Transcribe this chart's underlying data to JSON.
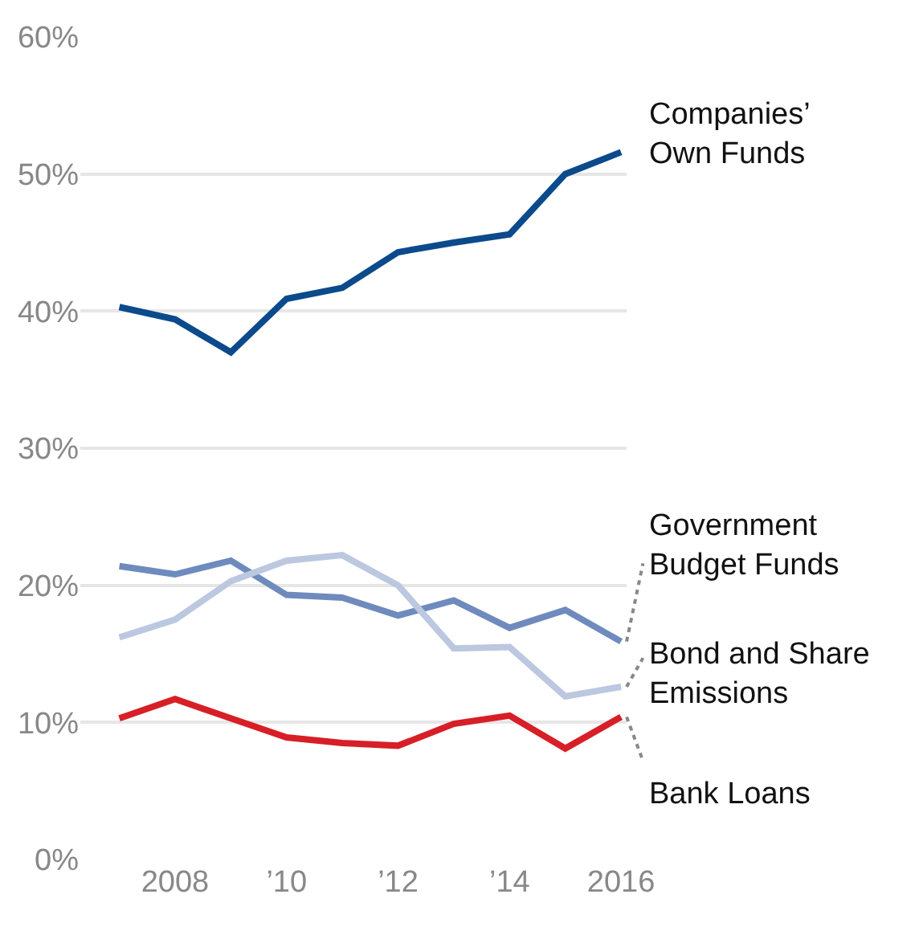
{
  "chart_data": {
    "type": "line",
    "x": [
      2007,
      2008,
      2009,
      2010,
      2011,
      2012,
      2013,
      2014,
      2015,
      2016
    ],
    "series": [
      {
        "name": "Companies’\nOwn Funds",
        "color": "#0b4a8b",
        "values": [
          40.3,
          39.4,
          37.0,
          40.9,
          41.7,
          44.3,
          45.0,
          45.6,
          50.0,
          51.6
        ]
      },
      {
        "name": "Government\nBudget Funds",
        "color": "#6f8bbd",
        "values": [
          21.4,
          20.8,
          21.8,
          19.3,
          19.1,
          17.8,
          18.9,
          16.9,
          18.2,
          15.9
        ]
      },
      {
        "name": "Bond and Share\nEmissions",
        "color": "#bcc7e0",
        "values": [
          16.2,
          17.5,
          20.3,
          21.8,
          22.2,
          20.0,
          15.4,
          15.5,
          11.9,
          12.6
        ]
      },
      {
        "name": "Bank Loans",
        "color": "#d71f27",
        "values": [
          10.3,
          11.7,
          10.3,
          8.9,
          8.5,
          8.3,
          9.9,
          10.5,
          8.1,
          10.4
        ]
      }
    ],
    "xlim": [
      2006.3,
      2016.1
    ],
    "xticks": [
      {
        "value": 2008,
        "label": "2008"
      },
      {
        "value": 2010,
        "label": "’10"
      },
      {
        "value": 2012,
        "label": "’12"
      },
      {
        "value": 2014,
        "label": "’14"
      },
      {
        "value": 2016,
        "label": "2016"
      }
    ],
    "ylim": [
      0,
      60
    ],
    "yticks": [
      {
        "value": 0,
        "label": "0%"
      },
      {
        "value": 10,
        "label": "10%"
      },
      {
        "value": 20,
        "label": "20%"
      },
      {
        "value": 30,
        "label": "30%"
      },
      {
        "value": 40,
        "label": "40%"
      },
      {
        "value": 50,
        "label": "50%"
      },
      {
        "value": 60,
        "label": "60%"
      }
    ],
    "grid": "y",
    "marker": "none",
    "line_style": "solid",
    "legend": false
  }
}
